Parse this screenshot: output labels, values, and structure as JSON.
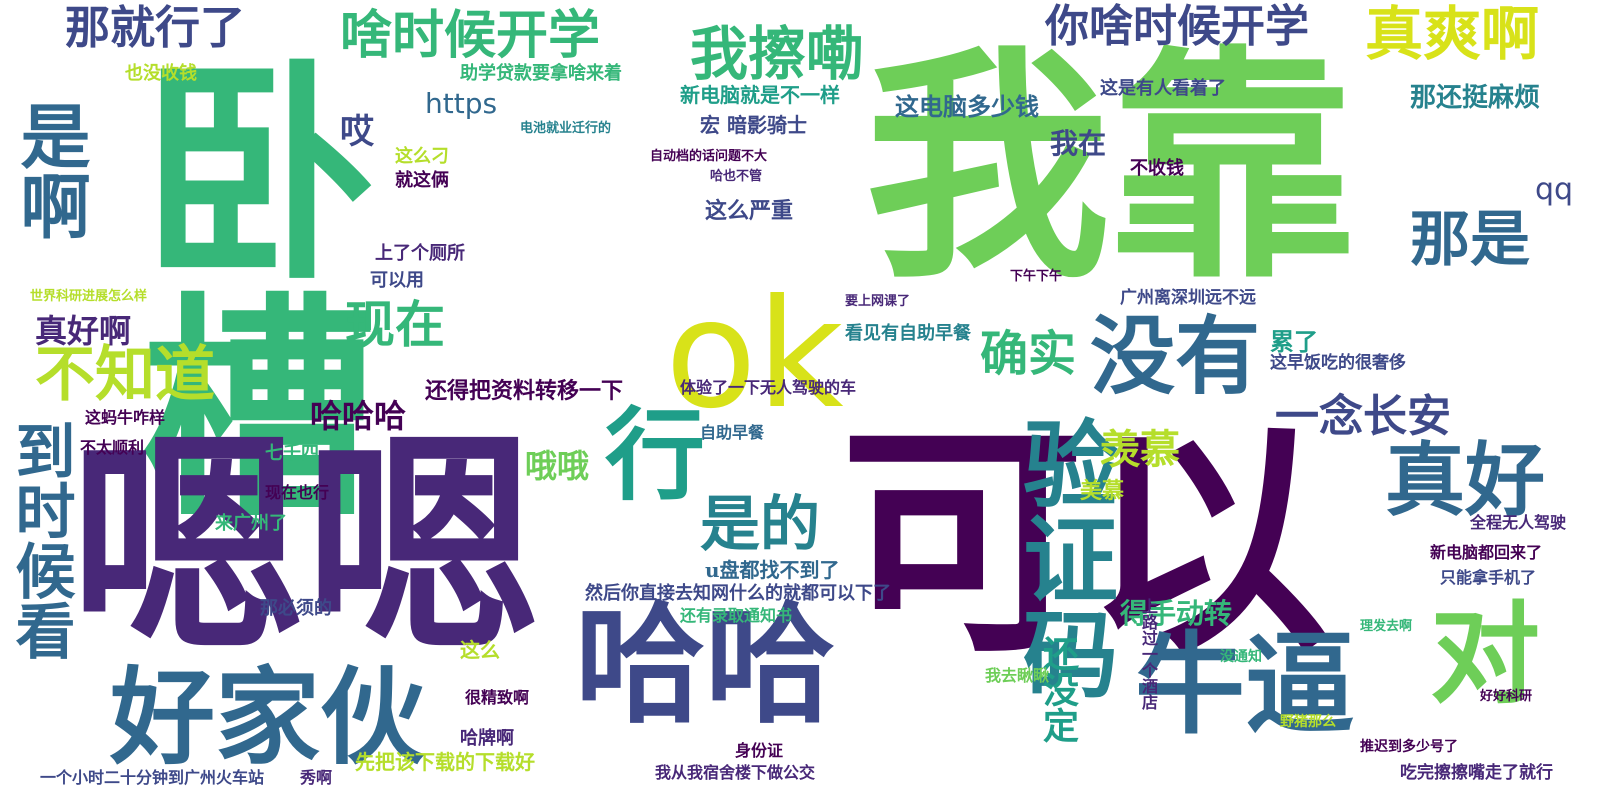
{
  "colors": {
    "viridis": [
      "#440154",
      "#482878",
      "#3e4989",
      "#31688e",
      "#26828e",
      "#1f9e89",
      "#35b779",
      "#6ece58",
      "#b5de2b",
      "#fde725"
    ]
  },
  "words": [
    {
      "text": "卧槽",
      "color": "#35b779"
    },
    {
      "text": "我靠",
      "color": "#6ece58"
    },
    {
      "text": "嗯嗯",
      "color": "#482878"
    },
    {
      "text": "可以",
      "color": "#440154"
    },
    {
      "text": "ok",
      "color": "#d8e219"
    },
    {
      "text": "哈哈",
      "color": "#3e4989"
    },
    {
      "text": "好家伙",
      "color": "#31688e"
    },
    {
      "text": "牛逼",
      "color": "#31688e"
    },
    {
      "text": "行",
      "color": "#1f9e89"
    },
    {
      "text": "是的",
      "color": "#26828e"
    },
    {
      "text": "验证码",
      "color": "#26828e"
    },
    {
      "text": "没有",
      "color": "#31688e"
    },
    {
      "text": "那是",
      "color": "#31688e"
    },
    {
      "text": "真好",
      "color": "#31688e"
    },
    {
      "text": "对",
      "color": "#6ece58"
    },
    {
      "text": "是啊",
      "color": "#31688e"
    },
    {
      "text": "到时候看",
      "color": "#31688e"
    },
    {
      "text": "不知道",
      "color": "#b5de2b"
    },
    {
      "text": "真爽啊",
      "color": "#d8e219"
    },
    {
      "text": "我擦嘞",
      "color": "#35b779"
    },
    {
      "text": "啥时候开学",
      "color": "#35b779"
    },
    {
      "text": "你啥时候开学",
      "color": "#3e4989"
    },
    {
      "text": "那就行了",
      "color": "#3e4989"
    },
    {
      "text": "现在",
      "color": "#35b779"
    },
    {
      "text": "确实",
      "color": "#35b779"
    },
    {
      "text": "一念长安",
      "color": "#3e4989"
    },
    {
      "text": "羡慕",
      "color": "#b5de2b"
    },
    {
      "text": "真好啊",
      "color": "#482878"
    },
    {
      "text": "哈哈哈",
      "color": "#440154"
    },
    {
      "text": "哦哦",
      "color": "#6ece58"
    },
    {
      "text": "还没定",
      "color": "#1f9e89"
    },
    {
      "text": "https",
      "color": "#31688e"
    },
    {
      "text": "qq",
      "color": "#3e4989"
    },
    {
      "text": "哎",
      "color": "#3e4989"
    },
    {
      "text": "我在",
      "color": "#3e4989"
    },
    {
      "text": "得手动转",
      "color": "#35b779"
    },
    {
      "text": "美慕",
      "color": "#b5de2b"
    },
    {
      "text": "累了",
      "color": "#1f9e89"
    },
    {
      "text": "新电脑就是不一样",
      "color": "#1f9e89"
    },
    {
      "text": "宏 暗影骑士",
      "color": "#3e4989"
    },
    {
      "text": "这电脑多少钱",
      "color": "#31688e"
    },
    {
      "text": "那还挺麻烦",
      "color": "#26828e"
    },
    {
      "text": "这是有人看着了",
      "color": "#3e4989"
    },
    {
      "text": "助学贷款要拿啥来着",
      "color": "#35b779"
    },
    {
      "text": "也没收钱",
      "color": "#b5de2b"
    },
    {
      "text": "这么刁",
      "color": "#b5de2b"
    },
    {
      "text": "就这俩",
      "color": "#440154"
    },
    {
      "text": "不收钱",
      "color": "#440154"
    },
    {
      "text": "这么严重",
      "color": "#3e4989"
    },
    {
      "text": "上了个厕所",
      "color": "#482878"
    },
    {
      "text": "可以用",
      "color": "#3e4989"
    },
    {
      "text": "看见有自助早餐",
      "color": "#26828e"
    },
    {
      "text": "广州离深圳远不远",
      "color": "#3e4989"
    },
    {
      "text": "这早饭吃的很奢侈",
      "color": "#3e4989"
    },
    {
      "text": "还得把资料转移一下",
      "color": "#440154"
    },
    {
      "text": "体验了一下无人驾驶的车",
      "color": "#482878"
    },
    {
      "text": "自助早餐",
      "color": "#31688e"
    },
    {
      "text": "七千四",
      "color": "#35b779"
    },
    {
      "text": "现在也行",
      "color": "#440154"
    },
    {
      "text": "来广州了",
      "color": "#35b779"
    },
    {
      "text": "u盘都找不到了",
      "color": "#31688e"
    },
    {
      "text": "然后你直接去知网什么的就都可以下了",
      "color": "#3e4989"
    },
    {
      "text": "还有录取通知书",
      "color": "#35b779"
    },
    {
      "text": "新电脑都回来了",
      "color": "#440154"
    },
    {
      "text": "只能拿手机了",
      "color": "#3e4989"
    },
    {
      "text": "全程无人驾驶",
      "color": "#482878"
    },
    {
      "text": "那必须的",
      "color": "#3e4989"
    },
    {
      "text": "我去瞅瞅",
      "color": "#6ece58"
    },
    {
      "text": "很精致啊",
      "color": "#440154"
    },
    {
      "text": "哈牌啊",
      "color": "#482878"
    },
    {
      "text": "先把该下载的下载好",
      "color": "#b5de2b"
    },
    {
      "text": "身份证",
      "color": "#440154"
    },
    {
      "text": "我从我宿舍楼下做公交",
      "color": "#482878"
    },
    {
      "text": "吃完擦擦嘴走了就行",
      "color": "#482878"
    },
    {
      "text": "一个小时二十分钟到广州火车站",
      "color": "#3e4989"
    },
    {
      "text": "这蚂牛咋样",
      "color": "#440154"
    },
    {
      "text": "不太顺利",
      "color": "#440154"
    },
    {
      "text": "这么",
      "color": "#b5de2b"
    },
    {
      "text": "秀啊",
      "color": "#482878"
    },
    {
      "text": "上路过一个酒店",
      "color": "#482878"
    },
    {
      "text": "没通知",
      "color": "#35b779"
    },
    {
      "text": "野猪那么",
      "color": "#b5de2b"
    },
    {
      "text": "推迟到多少号了",
      "color": "#440154"
    },
    {
      "text": "好好科研",
      "color": "#440154"
    },
    {
      "text": "理发去啊",
      "color": "#35b779"
    },
    {
      "text": "下午下午",
      "color": "#440154"
    },
    {
      "text": "要上网课了",
      "color": "#482878"
    },
    {
      "text": "哈也不管",
      "color": "#482878"
    },
    {
      "text": "自动档的话问题不大",
      "color": "#440154"
    },
    {
      "text": "电池就业迁行的",
      "color": "#26828e"
    },
    {
      "text": "世界科研进展怎么样",
      "color": "#b5de2b"
    }
  ]
}
